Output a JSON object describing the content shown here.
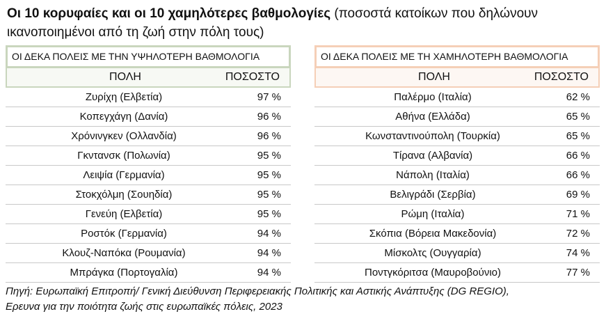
{
  "title": {
    "bold": "Οι 10 κορυφαίες και οι 10 χαμηλότερες βαθμολογίες",
    "normal": "(ποσοστά κατοίκων που δηλώνουν ικανοποιημένοι από τη ζωή στην πόλη τους)"
  },
  "tables": [
    {
      "heading": "ΟΙ ΔΕΚΑ ΠΟΛΕΙΣ ΜΕ ΤΗΝ ΥΨΗΛΟΤΕΡΗ ΒΑΘΜΟΛΟΓΙΑ",
      "columns": [
        "ΠΟΛΗ",
        "ΠΟΣΟΣΤΟ"
      ],
      "rows": [
        [
          "Ζυρίχη (Ελβετία)",
          "97 %"
        ],
        [
          "Κοπεγχάγη (Δανία)",
          "96 %"
        ],
        [
          "Χρόνινγκεν (Ολλανδία)",
          "96 %"
        ],
        [
          "Γκντανσκ (Πολωνία)",
          "95 %"
        ],
        [
          "Λειψία (Γερμανία)",
          "95 %"
        ],
        [
          "Στοκχόλμη (Σουηδία)",
          "95 %"
        ],
        [
          "Γενεύη (Ελβετία)",
          "95 %"
        ],
        [
          "Ροστόκ (Γερμανία)",
          "94 %"
        ],
        [
          "Κλουζ-Ναπόκα (Ρουμανία)",
          "94 %"
        ],
        [
          "Μπράγκα (Πορτογαλία)",
          "94 %"
        ]
      ]
    },
    {
      "heading": "ΟΙ ΔΕΚΑ ΠΟΛΕΙΣ ΜΕ ΤΗ ΧΑΜΗΛΟΤΕΡΗ ΒΑΘΜΟΛΟΓΙΑ",
      "columns": [
        "ΠΟΛΗ",
        "ΠΟΣΟΣΤΟ"
      ],
      "rows": [
        [
          "Παλέρμο (Ιταλία)",
          "62 %"
        ],
        [
          "Αθήνα (Ελλάδα)",
          "65 %"
        ],
        [
          "Κωνσταντινούπολη (Τουρκία)",
          "65 %"
        ],
        [
          "Τίρανα (Αλβανία)",
          "66 %"
        ],
        [
          "Νάπολη (Ιταλία)",
          "66 %"
        ],
        [
          "Βελιγράδι (Σερβία)",
          "69 %"
        ],
        [
          "Ρώμη (Ιταλία)",
          "71 %"
        ],
        [
          "Σκόπια (Βόρεια Μακεδονία)",
          "72 %"
        ],
        [
          "Μίσκολτς (Ουγγαρία)",
          "74 %"
        ],
        [
          "Ποντγκόριτσα (Μαυροβούνιο)",
          "77 %"
        ]
      ]
    }
  ],
  "source": [
    "Πηγή: Ευρωπαϊκή Επιτροπή/ Γενική Διεύθυνση Περιφερειακής Πολιτικής και Αστικής Ανάπτυξης (DG REGIO),",
    "Ερευνα για την ποιότητα ζωής στις ευρωπαϊκές πόλεις, 2023"
  ]
}
